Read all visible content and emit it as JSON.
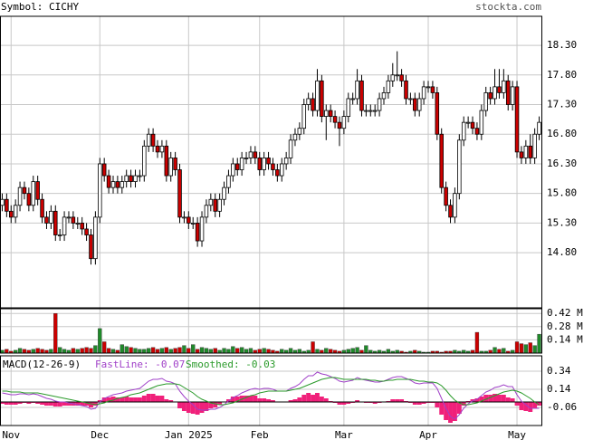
{
  "chart_data": [
    {
      "type": "candlestick",
      "title": "Symbol: CICHY",
      "source": "stockta.com",
      "categories": [
        null,
        null,
        "Nov",
        null,
        null,
        null,
        null,
        null,
        null,
        null,
        null,
        null,
        null,
        null,
        null,
        null,
        null,
        null,
        null,
        null,
        null,
        null,
        "Dec",
        null,
        null,
        null,
        null,
        null,
        null,
        null,
        null,
        null,
        null,
        null,
        null,
        null,
        null,
        null,
        null,
        null,
        null,
        null,
        "Jan 2025",
        null,
        null,
        null,
        null,
        null,
        null,
        null,
        null,
        null,
        null,
        null,
        null,
        null,
        null,
        null,
        "Feb",
        null,
        null,
        null,
        null,
        null,
        null,
        null,
        null,
        null,
        null,
        null,
        null,
        null,
        null,
        null,
        null,
        null,
        null,
        "Mar",
        null,
        null,
        null,
        null,
        null,
        null,
        null,
        null,
        null,
        null,
        null,
        null,
        null,
        null,
        null,
        null,
        null,
        null,
        "Apr",
        null,
        null,
        null,
        null,
        null,
        null,
        null,
        null,
        null,
        null,
        null,
        null,
        null,
        null,
        null,
        null,
        null,
        null,
        null,
        "May",
        null,
        null,
        null,
        null,
        null
      ],
      "open": [
        15.6,
        15.7,
        15.5,
        15.4,
        15.6,
        15.9,
        15.8,
        15.6,
        16.0,
        15.7,
        15.4,
        15.3,
        15.5,
        15.1,
        15.1,
        15.4,
        15.4,
        15.3,
        15.3,
        15.2,
        15.1,
        14.7,
        15.4,
        16.3,
        16.1,
        15.9,
        16.0,
        15.9,
        16.0,
        16.1,
        16.0,
        16.1,
        16.1,
        16.6,
        16.8,
        16.6,
        16.5,
        16.6,
        16.1,
        16.4,
        16.2,
        15.4,
        15.4,
        15.3,
        15.3,
        15.0,
        15.4,
        15.6,
        15.7,
        15.5,
        15.7,
        15.9,
        16.1,
        16.3,
        16.2,
        16.4,
        16.4,
        16.5,
        16.4,
        16.2,
        16.4,
        16.3,
        16.2,
        16.1,
        16.3,
        16.4,
        16.7,
        16.8,
        16.9,
        17.3,
        17.4,
        17.2,
        17.7,
        17.1,
        17.2,
        17.1,
        17.0,
        16.9,
        17.1,
        17.4,
        17.4,
        17.7,
        17.2,
        17.2,
        17.2,
        17.2,
        17.4,
        17.5,
        17.7,
        17.8,
        17.8,
        17.7,
        17.4,
        17.4,
        17.2,
        17.4,
        17.6,
        17.6,
        17.5,
        16.8,
        15.9,
        15.6,
        15.4,
        15.8,
        16.7,
        17.0,
        17.0,
        16.9,
        16.8,
        17.2,
        17.5,
        17.4,
        17.6,
        17.5,
        17.7,
        17.3,
        17.6,
        16.5,
        16.4,
        16.6,
        16.4,
        16.8
      ],
      "high": [
        15.8,
        15.8,
        15.6,
        15.7,
        16.0,
        16.0,
        15.9,
        16.1,
        16.1,
        15.8,
        15.5,
        15.6,
        15.6,
        15.2,
        15.5,
        15.5,
        15.5,
        15.4,
        15.4,
        15.3,
        15.2,
        15.5,
        16.4,
        16.4,
        16.2,
        16.1,
        16.1,
        16.1,
        16.2,
        16.2,
        16.2,
        16.2,
        16.7,
        16.9,
        16.9,
        16.7,
        16.7,
        16.7,
        16.5,
        16.5,
        16.3,
        15.5,
        15.5,
        15.4,
        15.4,
        15.5,
        15.7,
        15.8,
        15.8,
        15.8,
        16.0,
        16.2,
        16.4,
        16.4,
        16.5,
        16.5,
        16.6,
        16.6,
        16.5,
        16.5,
        16.5,
        16.4,
        16.3,
        16.4,
        16.5,
        16.8,
        16.9,
        17.0,
        17.4,
        17.5,
        17.5,
        17.9,
        17.8,
        17.3,
        17.3,
        17.2,
        17.1,
        17.2,
        17.5,
        17.5,
        17.9,
        17.8,
        17.3,
        17.3,
        17.3,
        17.5,
        17.6,
        17.8,
        18.0,
        18.2,
        17.9,
        17.8,
        17.5,
        17.5,
        17.5,
        17.7,
        17.7,
        17.7,
        17.6,
        16.9,
        16.0,
        15.7,
        15.9,
        16.8,
        17.1,
        17.1,
        17.1,
        17.0,
        17.3,
        17.6,
        17.6,
        17.9,
        17.9,
        17.9,
        17.8,
        17.7,
        17.7,
        16.6,
        16.7,
        16.8,
        16.9,
        17.1
      ],
      "low": [
        15.5,
        15.4,
        15.3,
        15.3,
        15.5,
        15.7,
        15.5,
        15.5,
        15.6,
        15.3,
        15.2,
        15.2,
        15.0,
        15.0,
        15.0,
        15.3,
        15.2,
        15.2,
        15.1,
        15.0,
        14.6,
        14.6,
        15.3,
        16.0,
        15.8,
        15.8,
        15.8,
        15.8,
        15.9,
        15.9,
        15.9,
        16.0,
        16.0,
        16.5,
        16.5,
        16.4,
        16.4,
        16.0,
        16.0,
        16.1,
        15.3,
        15.3,
        15.2,
        15.2,
        14.9,
        14.9,
        15.3,
        15.5,
        15.4,
        15.4,
        15.6,
        15.8,
        16.0,
        16.1,
        16.1,
        16.3,
        16.3,
        16.3,
        16.1,
        16.1,
        16.2,
        16.1,
        16.0,
        16.0,
        16.2,
        16.3,
        16.6,
        16.7,
        16.8,
        17.2,
        17.1,
        17.1,
        17.0,
        16.7,
        17.0,
        16.9,
        16.6,
        16.8,
        17.0,
        17.3,
        17.3,
        17.1,
        17.1,
        17.1,
        17.1,
        17.1,
        17.3,
        17.4,
        17.6,
        17.7,
        17.6,
        17.3,
        17.3,
        17.1,
        17.1,
        17.3,
        17.5,
        17.4,
        16.7,
        15.8,
        15.5,
        15.3,
        15.3,
        15.7,
        16.6,
        16.9,
        16.8,
        16.7,
        16.7,
        17.1,
        17.3,
        17.3,
        17.4,
        17.4,
        17.2,
        17.2,
        16.4,
        16.3,
        16.3,
        16.3,
        16.3,
        16.7
      ],
      "close": [
        15.7,
        15.5,
        15.4,
        15.6,
        15.9,
        15.8,
        15.6,
        16.0,
        15.7,
        15.4,
        15.3,
        15.5,
        15.1,
        15.1,
        15.4,
        15.4,
        15.3,
        15.3,
        15.2,
        15.1,
        14.7,
        15.4,
        16.3,
        16.1,
        15.9,
        16.0,
        15.9,
        16.0,
        16.1,
        16.0,
        16.1,
        16.1,
        16.6,
        16.8,
        16.6,
        16.5,
        16.6,
        16.1,
        16.4,
        16.2,
        15.4,
        15.4,
        15.3,
        15.3,
        15.0,
        15.4,
        15.6,
        15.7,
        15.5,
        15.7,
        15.9,
        16.1,
        16.3,
        16.2,
        16.4,
        16.4,
        16.5,
        16.4,
        16.2,
        16.4,
        16.3,
        16.2,
        16.1,
        16.3,
        16.4,
        16.7,
        16.8,
        16.9,
        17.3,
        17.4,
        17.2,
        17.7,
        17.1,
        17.2,
        17.1,
        17.0,
        16.9,
        17.1,
        17.4,
        17.4,
        17.7,
        17.2,
        17.2,
        17.2,
        17.2,
        17.4,
        17.5,
        17.7,
        17.8,
        17.8,
        17.7,
        17.4,
        17.4,
        17.2,
        17.4,
        17.6,
        17.6,
        17.5,
        16.8,
        15.9,
        15.6,
        15.4,
        15.8,
        16.7,
        17.0,
        17.0,
        16.9,
        16.8,
        17.2,
        17.5,
        17.4,
        17.6,
        17.5,
        17.7,
        17.3,
        17.6,
        16.5,
        16.4,
        16.6,
        16.4,
        16.8,
        17.0
      ],
      "up_color": "#ffffff",
      "down_color": "#cc0000",
      "wick_color": "#000000",
      "ylim": [
        13.87,
        18.79
      ],
      "yticks": [
        {
          "value": 18.3,
          "label": "18.30"
        },
        {
          "value": 17.8,
          "label": "17.80"
        },
        {
          "value": 17.3,
          "label": "17.30"
        },
        {
          "value": 16.8,
          "label": "16.80"
        },
        {
          "value": 16.3,
          "label": "16.30"
        },
        {
          "value": 15.8,
          "label": "15.80"
        },
        {
          "value": 15.3,
          "label": "15.30"
        },
        {
          "value": 14.8,
          "label": "14.80"
        }
      ],
      "grid": true
    },
    {
      "type": "bar",
      "values": [
        0.03,
        0.04,
        0.02,
        0.03,
        0.05,
        0.04,
        0.03,
        0.04,
        0.05,
        0.04,
        0.03,
        0.04,
        0.42,
        0.06,
        0.04,
        0.03,
        0.05,
        0.04,
        0.05,
        0.06,
        0.05,
        0.08,
        0.26,
        0.12,
        0.05,
        0.04,
        0.03,
        0.09,
        0.07,
        0.06,
        0.05,
        0.04,
        0.04,
        0.05,
        0.06,
        0.04,
        0.05,
        0.06,
        0.04,
        0.05,
        0.06,
        0.08,
        0.05,
        0.09,
        0.04,
        0.06,
        0.05,
        0.04,
        0.05,
        0.03,
        0.05,
        0.04,
        0.07,
        0.05,
        0.06,
        0.04,
        0.05,
        0.03,
        0.04,
        0.05,
        0.04,
        0.03,
        0.02,
        0.04,
        0.03,
        0.05,
        0.03,
        0.04,
        0.02,
        0.03,
        0.12,
        0.04,
        0.03,
        0.05,
        0.04,
        0.03,
        0.02,
        0.03,
        0.04,
        0.05,
        0.06,
        0.03,
        0.08,
        0.03,
        0.02,
        0.03,
        0.02,
        0.04,
        0.02,
        0.03,
        0.02,
        0.01,
        0.02,
        0.03,
        0.02,
        0.01,
        0.01,
        0.02,
        0.02,
        0.01,
        0.02,
        0.02,
        0.03,
        0.02,
        0.03,
        0.02,
        0.03,
        0.22,
        0.02,
        0.02,
        0.03,
        0.06,
        0.04,
        0.05,
        0.02,
        0.03,
        0.12,
        0.1,
        0.09,
        0.11,
        0.08,
        0.2
      ],
      "up_color": "#1f8a2a",
      "down_color": "#cc0000",
      "ylim": [
        0,
        0.47
      ],
      "yticks": [
        {
          "value": 0.42,
          "label": "0.42 M"
        },
        {
          "value": 0.28,
          "label": "0.28 M"
        },
        {
          "value": 0.14,
          "label": "0.14 M"
        }
      ],
      "grid": true
    },
    {
      "type": "macd",
      "title": "MACD(12-26-9)",
      "series": [
        {
          "name": "FastLine: -0.07",
          "color": "#a040c8",
          "values": [
            0.1,
            0.09,
            0.08,
            0.08,
            0.09,
            0.09,
            0.08,
            0.09,
            0.08,
            0.06,
            0.04,
            0.03,
            0.01,
            0.0,
            0.0,
            -0.01,
            -0.02,
            -0.03,
            -0.04,
            -0.05,
            -0.08,
            -0.07,
            0.0,
            0.04,
            0.06,
            0.08,
            0.09,
            0.1,
            0.12,
            0.13,
            0.14,
            0.15,
            0.19,
            0.23,
            0.25,
            0.25,
            0.26,
            0.23,
            0.22,
            0.2,
            0.12,
            0.06,
            0.01,
            -0.03,
            -0.08,
            -0.09,
            -0.09,
            -0.08,
            -0.08,
            -0.06,
            -0.03,
            0.01,
            0.05,
            0.07,
            0.1,
            0.12,
            0.14,
            0.15,
            0.14,
            0.15,
            0.15,
            0.14,
            0.12,
            0.12,
            0.12,
            0.15,
            0.17,
            0.2,
            0.25,
            0.29,
            0.29,
            0.33,
            0.31,
            0.3,
            0.28,
            0.26,
            0.23,
            0.22,
            0.23,
            0.24,
            0.27,
            0.25,
            0.24,
            0.23,
            0.22,
            0.22,
            0.23,
            0.25,
            0.27,
            0.28,
            0.28,
            0.26,
            0.24,
            0.21,
            0.2,
            0.21,
            0.21,
            0.21,
            0.15,
            0.04,
            -0.07,
            -0.16,
            -0.19,
            -0.14,
            -0.07,
            -0.02,
            0.01,
            0.03,
            0.07,
            0.11,
            0.13,
            0.16,
            0.17,
            0.19,
            0.17,
            0.17,
            0.08,
            0.01,
            -0.03,
            -0.07,
            -0.07,
            -0.07
          ]
        },
        {
          "name": "Smoothed: -0.03",
          "color": "#2a9a2a",
          "values": [
            0.12,
            0.12,
            0.11,
            0.11,
            0.11,
            0.1,
            0.1,
            0.1,
            0.1,
            0.09,
            0.08,
            0.07,
            0.06,
            0.05,
            0.04,
            0.03,
            0.02,
            0.01,
            0.0,
            -0.01,
            -0.02,
            -0.03,
            -0.02,
            -0.01,
            0.01,
            0.02,
            0.04,
            0.05,
            0.06,
            0.08,
            0.09,
            0.1,
            0.12,
            0.14,
            0.16,
            0.18,
            0.19,
            0.2,
            0.2,
            0.2,
            0.19,
            0.16,
            0.13,
            0.1,
            0.06,
            0.03,
            0.01,
            -0.01,
            -0.02,
            -0.03,
            -0.03,
            -0.02,
            -0.01,
            0.01,
            0.03,
            0.05,
            0.07,
            0.08,
            0.1,
            0.11,
            0.12,
            0.12,
            0.12,
            0.12,
            0.12,
            0.13,
            0.14,
            0.15,
            0.17,
            0.19,
            0.21,
            0.23,
            0.25,
            0.26,
            0.27,
            0.27,
            0.26,
            0.25,
            0.25,
            0.25,
            0.25,
            0.25,
            0.25,
            0.24,
            0.24,
            0.23,
            0.23,
            0.24,
            0.24,
            0.25,
            0.25,
            0.25,
            0.25,
            0.24,
            0.23,
            0.23,
            0.22,
            0.22,
            0.21,
            0.18,
            0.13,
            0.07,
            0.02,
            -0.01,
            -0.03,
            -0.03,
            -0.02,
            -0.01,
            0.01,
            0.03,
            0.05,
            0.07,
            0.09,
            0.11,
            0.12,
            0.13,
            0.12,
            0.1,
            0.07,
            0.04,
            0.0,
            -0.03
          ]
        }
      ],
      "histogram": [
        -0.02,
        -0.03,
        -0.03,
        -0.03,
        -0.02,
        -0.01,
        -0.02,
        -0.01,
        -0.02,
        -0.03,
        -0.04,
        -0.04,
        -0.05,
        -0.05,
        -0.04,
        -0.04,
        -0.04,
        -0.04,
        -0.04,
        -0.04,
        -0.06,
        -0.04,
        0.02,
        0.05,
        0.05,
        0.06,
        0.05,
        0.05,
        0.06,
        0.05,
        0.05,
        0.05,
        0.07,
        0.09,
        0.09,
        0.07,
        0.07,
        0.03,
        0.02,
        0.0,
        -0.07,
        -0.1,
        -0.12,
        -0.13,
        -0.14,
        -0.12,
        -0.1,
        -0.07,
        -0.06,
        -0.03,
        0.0,
        0.03,
        0.06,
        0.06,
        0.07,
        0.07,
        0.07,
        0.07,
        0.04,
        0.04,
        0.03,
        0.02,
        0.0,
        0.0,
        0.0,
        0.02,
        0.03,
        0.05,
        0.08,
        0.1,
        0.08,
        0.1,
        0.06,
        0.04,
        0.01,
        -0.01,
        -0.03,
        -0.03,
        -0.02,
        -0.01,
        0.02,
        0.0,
        -0.01,
        -0.01,
        -0.02,
        -0.01,
        0.0,
        0.01,
        0.03,
        0.03,
        0.03,
        0.01,
        -0.01,
        -0.03,
        -0.03,
        -0.02,
        -0.01,
        -0.01,
        -0.06,
        -0.14,
        -0.2,
        -0.23,
        -0.21,
        -0.13,
        -0.04,
        0.01,
        0.03,
        0.04,
        0.06,
        0.08,
        0.08,
        0.09,
        0.08,
        0.08,
        0.05,
        0.04,
        -0.04,
        -0.09,
        -0.1,
        -0.11,
        -0.07,
        -0.04
      ],
      "histogram_color": "#f0207a",
      "ylim": [
        -0.26,
        0.51
      ],
      "yticks": [
        0.34,
        0.14,
        -0.06
      ],
      "grid": true
    }
  ]
}
